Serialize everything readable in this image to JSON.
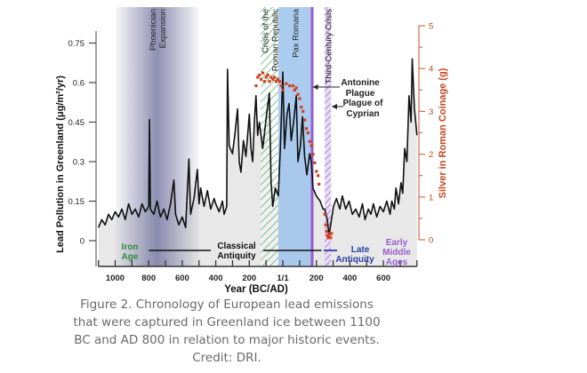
{
  "chart_data": {
    "type": "line",
    "title": "",
    "xlabel": "Year (BC/AD)",
    "ylabel": "Lead Pollution in Greenland (μg/m²/yr)",
    "y2label": "Silver in Roman Coinage (g)",
    "xlim": [
      -1100,
      800
    ],
    "ylim": [
      -0.1,
      0.8
    ],
    "y2lim": [
      -0.6,
      5.2
    ],
    "xticks": [
      -1000,
      -800,
      -600,
      -400,
      -200,
      0,
      200,
      400,
      600
    ],
    "xtick_labels": [
      "1000",
      "800",
      "600",
      "400",
      "200",
      "1/1",
      "200",
      "400",
      "600"
    ],
    "yticks": [
      0,
      0.15,
      0.3,
      0.45,
      0.6,
      0.75
    ],
    "ytick_labels": [
      "0",
      "0.15",
      "0.3",
      "0.45",
      "0.6",
      "0.75"
    ],
    "y2ticks": [
      0,
      1,
      2,
      3,
      4,
      5
    ],
    "y2tick_labels": [
      "0",
      "1",
      "2",
      "3",
      "4",
      "5"
    ],
    "grid": false,
    "series": [
      {
        "axis": "left",
        "color": "#111111",
        "fill": "#e4e4e4",
        "x": [
          -1100,
          -1080,
          -1060,
          -1040,
          -1020,
          -1000,
          -980,
          -960,
          -940,
          -920,
          -900,
          -880,
          -860,
          -840,
          -820,
          -800,
          -795,
          -790,
          -770,
          -750,
          -730,
          -710,
          -690,
          -670,
          -650,
          -640,
          -620,
          -600,
          -580,
          -560,
          -550,
          -530,
          -510,
          -500,
          -490,
          -470,
          -450,
          -430,
          -410,
          -400,
          -380,
          -360,
          -350,
          -335,
          -330,
          -320,
          -300,
          -285,
          -270,
          -260,
          -250,
          -235,
          -220,
          -205,
          -200,
          -190,
          -180,
          -170,
          -160,
          -150,
          -140,
          -120,
          -95,
          -80,
          -70,
          -60,
          -45,
          -27,
          -15,
          0,
          10,
          25,
          37,
          50,
          64,
          80,
          90,
          105,
          117,
          130,
          143,
          160,
          170,
          180,
          200,
          223,
          240,
          250,
          265,
          276,
          290,
          302,
          320,
          340,
          355,
          375,
          395,
          415,
          435,
          455,
          475,
          490,
          510,
          525,
          540,
          560,
          580,
          600,
          620,
          640,
          650,
          665,
          675,
          690,
          705,
          715,
          727,
          740,
          753,
          765,
          772,
          785,
          800
        ],
        "values": [
          0.05,
          0.08,
          0.06,
          0.1,
          0.08,
          0.11,
          0.09,
          0.12,
          0.08,
          0.14,
          0.1,
          0.12,
          0.09,
          0.14,
          0.11,
          0.13,
          0.46,
          0.12,
          0.1,
          0.15,
          0.09,
          0.12,
          0.08,
          0.14,
          0.23,
          0.1,
          0.06,
          0.09,
          0.05,
          0.31,
          0.1,
          0.16,
          0.27,
          0.14,
          0.2,
          0.13,
          0.19,
          0.12,
          0.16,
          0.14,
          0.11,
          0.15,
          0.1,
          0.13,
          0.65,
          0.36,
          0.33,
          0.41,
          0.5,
          0.3,
          0.26,
          0.38,
          0.32,
          0.44,
          0.48,
          0.35,
          0.3,
          0.45,
          0.55,
          0.4,
          0.45,
          0.35,
          0.49,
          0.56,
          0.22,
          0.13,
          0.2,
          0.17,
          0.35,
          0.64,
          0.35,
          0.48,
          0.52,
          0.38,
          0.45,
          0.55,
          0.3,
          0.36,
          0.47,
          0.32,
          0.25,
          0.33,
          0.3,
          0.2,
          0.17,
          0.15,
          0.12,
          0.12,
          0.08,
          0.02,
          0.08,
          0.13,
          0.16,
          0.12,
          0.17,
          0.12,
          0.15,
          0.1,
          0.12,
          0.09,
          0.14,
          0.08,
          0.12,
          0.1,
          0.14,
          0.09,
          0.13,
          0.11,
          0.15,
          0.1,
          0.15,
          0.12,
          0.2,
          0.14,
          0.22,
          0.18,
          0.35,
          0.3,
          0.55,
          0.45,
          0.69,
          0.5,
          0.4
        ]
      },
      {
        "axis": "right",
        "type": "scatter",
        "color": "#d2401c",
        "x": [
          -160,
          -150,
          -140,
          -130,
          -120,
          -110,
          -100,
          -90,
          -80,
          -70,
          -60,
          -50,
          -40,
          -30,
          -20,
          -10,
          0,
          20,
          40,
          60,
          70,
          80,
          90,
          100,
          110,
          120,
          130,
          140,
          150,
          160,
          170,
          180,
          190,
          200,
          210,
          215,
          250,
          255,
          260,
          265,
          270,
          275,
          280,
          285,
          290
        ],
        "values": [
          3.6,
          3.8,
          3.85,
          3.75,
          3.9,
          3.7,
          3.8,
          3.85,
          3.7,
          3.8,
          3.75,
          3.8,
          3.7,
          3.75,
          3.7,
          3.6,
          3.5,
          3.65,
          3.6,
          3.6,
          3.5,
          3.55,
          3.4,
          3.3,
          3.1,
          3.0,
          2.8,
          2.6,
          2.5,
          2.3,
          2.2,
          2.0,
          1.8,
          1.6,
          1.5,
          1.3,
          0.6,
          0.35,
          0.2,
          0.1,
          0.05,
          0.1,
          0.15,
          0.05,
          0.15
        ]
      }
    ],
    "periods": [
      {
        "label_lines": [
          "Phoenician",
          "Expansion"
        ],
        "from": -1000,
        "to": -500,
        "color": "#6a6a9a",
        "style": "gradient"
      },
      {
        "label_lines": [
          "Crisis of the",
          "Roman Republic"
        ],
        "from": -133,
        "to": -27,
        "color": "#5fae7a",
        "style": "hatch"
      },
      {
        "label_lines": [
          "Pax Romana"
        ],
        "from": -27,
        "to": 170,
        "color": "#9cc3ec",
        "style": "solid"
      },
      {
        "label_lines": [
          "Third-Century Crisis"
        ],
        "from": 250,
        "to": 287,
        "color": "#a47ad6",
        "style": "hatch"
      }
    ],
    "annotations": [
      {
        "label_lines": [
          "Antonine",
          "Plague"
        ],
        "year": 175,
        "color": "#9a5ccf"
      },
      {
        "label_lines": [
          "Plague of",
          "Cyprian"
        ],
        "year": 260
      }
    ],
    "eras": [
      {
        "label_lines": [
          "Iron",
          "Age"
        ],
        "color": "#2f8a3c"
      },
      {
        "label_lines": [
          "Classical",
          "Antiquity"
        ],
        "color": "#111111",
        "from": -800,
        "to": 230
      },
      {
        "label_lines": [
          "Late",
          "Antiquity"
        ],
        "color": "#2a3ea3",
        "from": 240,
        "to": 310
      },
      {
        "label_lines": [
          "Early",
          "Middle",
          "Ages"
        ],
        "color": "#9a5ccf"
      }
    ]
  },
  "caption": {
    "lines": [
      "Figure 2. Chronology of European lead emissions",
      "that were captured in Greenland ice between 1100",
      "BC and AD 800 in relation to major historic events.",
      "Credit: DRI."
    ]
  }
}
